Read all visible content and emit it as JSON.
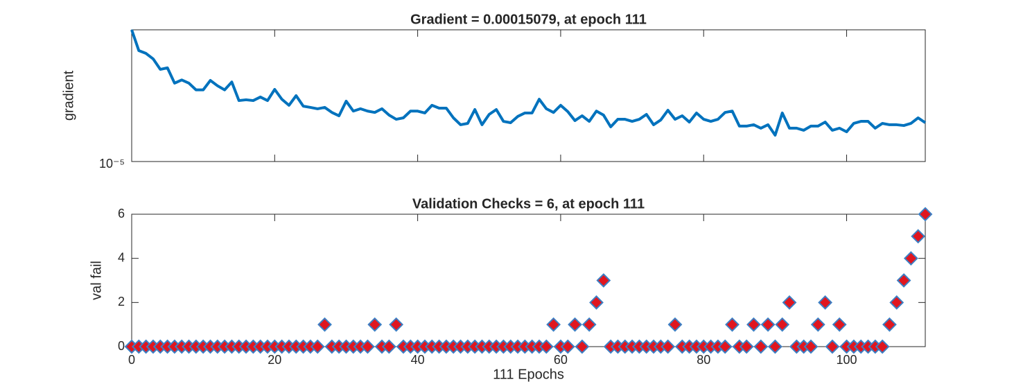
{
  "chart_data": [
    {
      "type": "line",
      "title": "Gradient = 0.00015079, at epoch 111",
      "y_label": "gradient",
      "color": "#0072bd",
      "log_y": true,
      "xlim": [
        0,
        111
      ],
      "ylim": [
        1e-05,
        0.1
      ],
      "yticks": [
        {
          "value": 1e-05,
          "label": "10⁻⁵"
        }
      ],
      "x": [
        0,
        1,
        2,
        3,
        4,
        5,
        6,
        7,
        8,
        9,
        10,
        11,
        12,
        13,
        14,
        15,
        16,
        17,
        18,
        19,
        20,
        21,
        22,
        23,
        24,
        25,
        26,
        27,
        28,
        29,
        30,
        31,
        32,
        33,
        34,
        35,
        36,
        37,
        38,
        39,
        40,
        41,
        42,
        43,
        44,
        45,
        46,
        47,
        48,
        49,
        50,
        51,
        52,
        53,
        54,
        55,
        56,
        57,
        58,
        59,
        60,
        61,
        62,
        63,
        64,
        65,
        66,
        67,
        68,
        69,
        70,
        71,
        72,
        73,
        74,
        75,
        76,
        77,
        78,
        79,
        80,
        81,
        82,
        83,
        84,
        85,
        86,
        87,
        88,
        89,
        90,
        91,
        92,
        93,
        94,
        95,
        96,
        97,
        98,
        99,
        100,
        101,
        102,
        103,
        104,
        105,
        106,
        107,
        108,
        109,
        110,
        111
      ],
      "values": [
        0.1,
        0.0233,
        0.0192,
        0.0131,
        0.0063,
        0.007,
        0.0024,
        0.003,
        0.0024,
        0.0015,
        0.0015,
        0.0029,
        0.002,
        0.0015,
        0.0026,
        0.00071,
        0.00075,
        0.00071,
        0.00091,
        0.00071,
        0.00155,
        0.00078,
        0.00051,
        0.001,
        0.00048,
        0.00044,
        0.0004,
        0.00044,
        0.00031,
        0.000245,
        0.00068,
        0.00034,
        0.0004,
        0.00034,
        0.00031,
        0.0004,
        0.000257,
        0.000192,
        0.000212,
        0.00034,
        0.00034,
        0.000298,
        0.00051,
        0.000418,
        0.000418,
        0.000212,
        0.000131,
        0.000144,
        0.000379,
        0.000131,
        0.00027,
        0.000379,
        0.000166,
        0.000151,
        0.000234,
        0.000298,
        0.000298,
        0.00078,
        0.0004,
        0.00031,
        0.00051,
        0.000328,
        0.000175,
        0.000245,
        0.000166,
        0.00034,
        0.000257,
        0.000113,
        0.000192,
        0.000192,
        0.000166,
        0.000192,
        0.00027,
        0.000131,
        0.000183,
        0.000361,
        0.000192,
        0.000245,
        0.000158,
        0.000298,
        0.000192,
        0.000166,
        0.000192,
        0.00031,
        0.00034,
        0.000119,
        0.000119,
        0.000131,
        0.000103,
        0.000131,
        6.3e-05,
        0.000298,
        0.000103,
        0.000103,
        8.9e-05,
        0.000119,
        0.000119,
        0.000158,
        8.9e-05,
        0.000103,
        8e-05,
        0.000144,
        0.000166,
        0.000166,
        0.000103,
        0.000144,
        0.000131,
        0.000131,
        0.000124,
        0.000144,
        0.000212,
        0.00015079
      ]
    },
    {
      "type": "scatter",
      "title": "Validation Checks = 6, at epoch 111",
      "x_label": "111 Epochs",
      "y_label": "val fail",
      "color": "#e0161f",
      "marker_edge_color": "#3c7fc4",
      "xlim": [
        0,
        111
      ],
      "ylim": [
        0,
        6
      ],
      "xticks": [
        0,
        20,
        40,
        60,
        80,
        100
      ],
      "yticks": [
        0,
        2,
        4,
        6
      ],
      "x": [
        0,
        1,
        2,
        3,
        4,
        5,
        6,
        7,
        8,
        9,
        10,
        11,
        12,
        13,
        14,
        15,
        16,
        17,
        18,
        19,
        20,
        21,
        22,
        23,
        24,
        25,
        26,
        27,
        28,
        29,
        30,
        31,
        32,
        33,
        34,
        35,
        36,
        37,
        38,
        39,
        40,
        41,
        42,
        43,
        44,
        45,
        46,
        47,
        48,
        49,
        50,
        51,
        52,
        53,
        54,
        55,
        56,
        57,
        58,
        59,
        60,
        61,
        62,
        63,
        64,
        65,
        66,
        67,
        68,
        69,
        70,
        71,
        72,
        73,
        74,
        75,
        76,
        77,
        78,
        79,
        80,
        81,
        82,
        83,
        84,
        85,
        86,
        87,
        88,
        89,
        90,
        91,
        92,
        93,
        94,
        95,
        96,
        97,
        98,
        99,
        100,
        101,
        102,
        103,
        104,
        105,
        106,
        107,
        108,
        109,
        110,
        111
      ],
      "values": [
        0,
        0,
        0,
        0,
        0,
        0,
        0,
        0,
        0,
        0,
        0,
        0,
        0,
        0,
        0,
        0,
        0,
        0,
        0,
        0,
        0,
        0,
        0,
        0,
        0,
        0,
        0,
        1,
        0,
        0,
        0,
        0,
        0,
        0,
        1,
        0,
        0,
        1,
        0,
        0,
        0,
        0,
        0,
        0,
        0,
        0,
        0,
        0,
        0,
        0,
        0,
        0,
        0,
        0,
        0,
        0,
        0,
        0,
        0,
        1,
        0,
        0,
        1,
        0,
        1,
        2,
        3,
        0,
        0,
        0,
        0,
        0,
        0,
        0,
        0,
        0,
        1,
        0,
        0,
        0,
        0,
        0,
        0,
        0,
        1,
        0,
        0,
        1,
        0,
        1,
        0,
        1,
        2,
        0,
        0,
        0,
        1,
        2,
        0,
        1,
        0,
        0,
        0,
        0,
        0,
        0,
        1,
        2,
        3,
        4,
        5,
        6
      ]
    }
  ]
}
